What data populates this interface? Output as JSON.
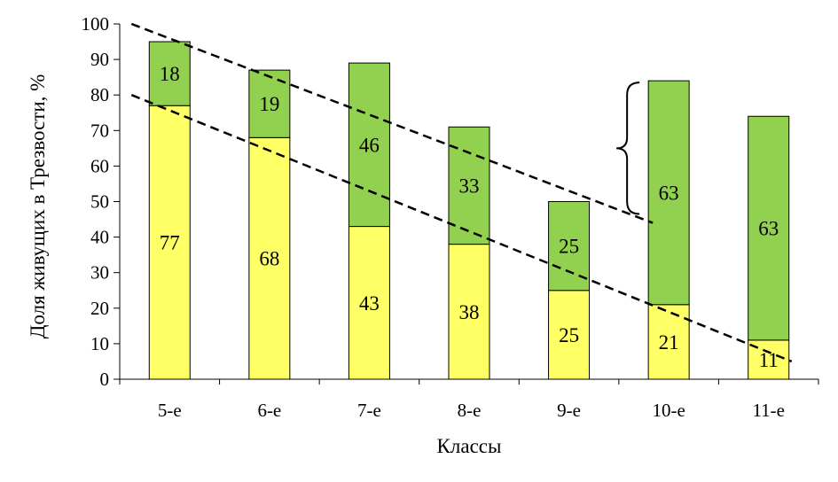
{
  "chart_data": {
    "type": "bar",
    "stacked": true,
    "categories": [
      "5-е",
      "6-е",
      "7-е",
      "8-е",
      "9-е",
      "10-е",
      "11-е"
    ],
    "series": [
      {
        "color": "#FFFF66",
        "values": [
          77,
          68,
          43,
          38,
          25,
          21,
          11
        ]
      },
      {
        "color": "#92D050",
        "values": [
          18,
          19,
          46,
          33,
          25,
          63,
          63
        ]
      }
    ],
    "xlabel": "Классы",
    "ylabel": "Доля живущих в Трезвости, %",
    "ylim": [
      0,
      100
    ],
    "yticks": [
      0,
      10,
      20,
      30,
      40,
      50,
      60,
      70,
      80,
      90,
      100
    ],
    "grid": false,
    "legend": "none",
    "trend_lines": [
      {
        "style": "dashed",
        "from": [
          "5-е",
          100
        ],
        "to": [
          "10-е",
          44
        ]
      },
      {
        "style": "dashed",
        "from": [
          "5-е",
          80
        ],
        "to": [
          "11-е",
          5
        ]
      }
    ],
    "annotations": [
      {
        "type": "curly-brace",
        "category": "10-е",
        "y_range": [
          84,
          46
        ]
      }
    ]
  }
}
